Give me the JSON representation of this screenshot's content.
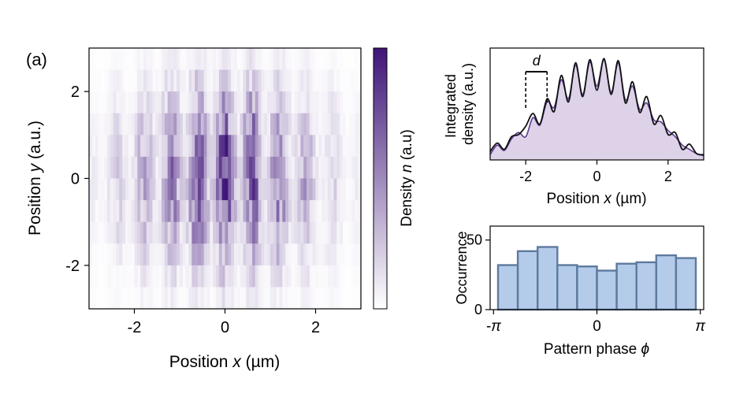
{
  "panel_label": "(a)",
  "chart_data": [
    {
      "type": "heatmap",
      "xlabel": {
        "text": "Position ",
        "var": "x",
        "unit": " (µm)"
      },
      "ylabel": {
        "text": "Position ",
        "var": "y",
        "unit": " (a.u.)"
      },
      "xlim": [
        -3,
        3
      ],
      "ylim": [
        -3,
        3
      ],
      "xticks": [
        -2,
        0,
        2
      ],
      "yticks": [
        -2,
        0,
        2
      ],
      "colorbar": {
        "label": "Density ",
        "var": "n",
        "unit": " (a.u)",
        "low_color": "#ffffff",
        "high_color": "#3f1579"
      },
      "pattern": {
        "period_um": 0.6,
        "envelope_sigma_x_um": 1.4,
        "envelope_sigma_y": 1.4,
        "rows": 12
      },
      "colormap": "white-to-purple"
    },
    {
      "type": "line",
      "xlabel": {
        "text": "Position ",
        "var": "x",
        "unit": " (µm)"
      },
      "ylabel": [
        "Integrated",
        "density (a.u.)"
      ],
      "xlim": [
        -3,
        3
      ],
      "xticks": [
        -2,
        0,
        2
      ],
      "annotation": {
        "text": "d",
        "from_x": -2.0,
        "to_x": -1.4
      },
      "series": [
        {
          "color": "#5b3a8e",
          "x": [
            -3.0,
            -2.8,
            -2.6,
            -2.4,
            -2.2,
            -2.0,
            -1.8,
            -1.6,
            -1.4,
            -1.2,
            -1.0,
            -0.8,
            -0.6,
            -0.4,
            -0.2,
            0.0,
            0.2,
            0.4,
            0.6,
            0.8,
            1.0,
            1.2,
            1.4,
            1.6,
            1.8,
            2.0,
            2.2,
            2.4,
            2.6,
            2.8,
            3.0
          ],
          "y": [
            0.05,
            0.14,
            0.09,
            0.2,
            0.26,
            0.22,
            0.4,
            0.33,
            0.55,
            0.5,
            0.76,
            0.58,
            0.9,
            0.62,
            0.93,
            0.7,
            0.95,
            0.64,
            0.92,
            0.57,
            0.7,
            0.48,
            0.54,
            0.38,
            0.36,
            0.28,
            0.22,
            0.14,
            0.1,
            0.06,
            0.04
          ]
        },
        {
          "color": "#111111",
          "x": [
            -3.0,
            -2.8,
            -2.6,
            -2.4,
            -2.2,
            -2.0,
            -1.8,
            -1.6,
            -1.4,
            -1.2,
            -1.0,
            -0.8,
            -0.6,
            -0.4,
            -0.2,
            0.0,
            0.2,
            0.4,
            0.6,
            0.8,
            1.0,
            1.2,
            1.4,
            1.6,
            1.8,
            2.0,
            2.2,
            2.4,
            2.6,
            2.8,
            3.0
          ],
          "y": [
            0.08,
            0.16,
            0.1,
            0.22,
            0.24,
            0.32,
            0.44,
            0.34,
            0.58,
            0.46,
            0.8,
            0.55,
            0.92,
            0.6,
            0.95,
            0.66,
            0.96,
            0.62,
            0.94,
            0.54,
            0.74,
            0.45,
            0.6,
            0.34,
            0.42,
            0.24,
            0.26,
            0.1,
            0.15,
            0.06,
            0.05
          ]
        }
      ]
    },
    {
      "type": "bar",
      "xlabel": {
        "text": "Pattern phase ",
        "var": "ϕ"
      },
      "ylabel": "Occurrence",
      "xlim": [
        -3.1416,
        3.1416
      ],
      "ylim": [
        0,
        60
      ],
      "xtick_labels": [
        "-π",
        "0",
        "π"
      ],
      "yticks": [
        0,
        50
      ],
      "bar_color": "#b5cbea",
      "bar_edge": "#5d7a9e",
      "values": [
        32,
        42,
        45,
        32,
        31,
        28,
        33,
        34,
        39,
        37
      ]
    }
  ]
}
